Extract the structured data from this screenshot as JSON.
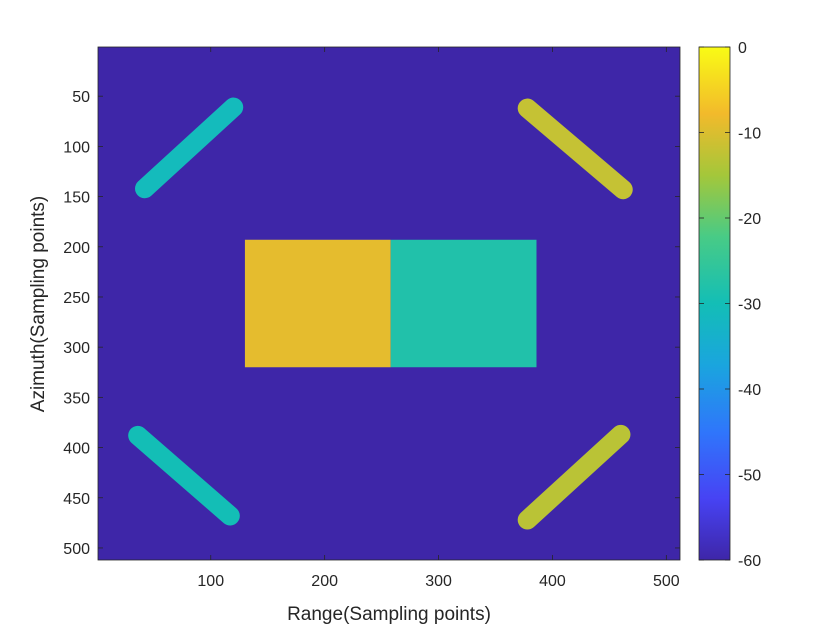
{
  "chart_data": {
    "type": "heatmap",
    "title": "",
    "xlabel": "Range(Sampling points)",
    "ylabel": "Azimuth(Sampling points)",
    "xlim": [
      1,
      512
    ],
    "ylim": [
      1,
      512
    ],
    "y_reversed": true,
    "grid": false,
    "xticks": [
      100,
      200,
      300,
      400,
      500
    ],
    "yticks": [
      50,
      100,
      150,
      200,
      250,
      300,
      350,
      400,
      450,
      500
    ],
    "background_value": -60,
    "colorbar": {
      "colormap": "parula",
      "limits": [
        -60,
        0
      ],
      "ticks": [
        0,
        -10,
        -20,
        -30,
        -40,
        -50,
        -60
      ],
      "placement": "right"
    },
    "regions": [
      {
        "shape": "rectangle",
        "x": [
          130,
          258
        ],
        "y": [
          193,
          320
        ],
        "value": -9
      },
      {
        "shape": "rectangle",
        "x": [
          258,
          386
        ],
        "y": [
          193,
          320
        ],
        "value": -28
      },
      {
        "shape": "strip",
        "x0": 42,
        "y0": 142,
        "x1": 120,
        "y1": 61,
        "width": 17,
        "value": -31
      },
      {
        "shape": "strip",
        "x0": 378,
        "y0": 62,
        "x1": 462,
        "y1": 143,
        "width": 17,
        "value": -12
      },
      {
        "shape": "strip",
        "x0": 36,
        "y0": 388,
        "x1": 117,
        "y1": 468,
        "width": 17,
        "value": -30
      },
      {
        "shape": "strip",
        "x0": 378,
        "y0": 472,
        "x1": 460,
        "y1": 387,
        "width": 17,
        "value": -13
      }
    ]
  }
}
